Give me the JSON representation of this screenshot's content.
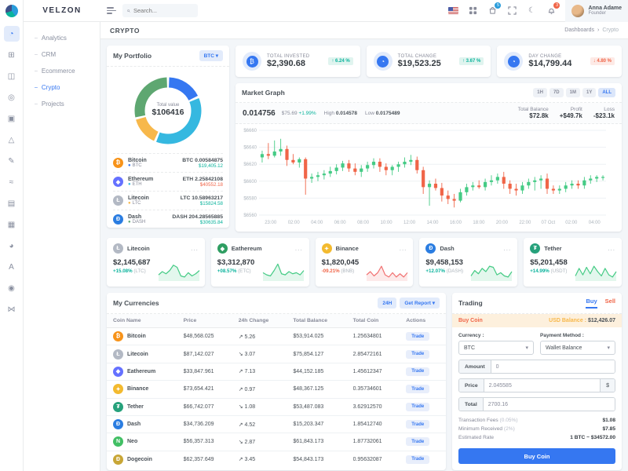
{
  "brand": {
    "name": "VELZON"
  },
  "topbar": {
    "search_placeholder": "Search...",
    "cart_badge": "5",
    "bell_badge": "3",
    "user": {
      "name": "Anna Adame",
      "role": "Founder"
    }
  },
  "rail": {
    "icons": [
      {
        "name": "dashboards",
        "glyph": "◔",
        "active": true
      },
      {
        "name": "apps",
        "glyph": "⊞",
        "active": false
      },
      {
        "name": "layouts",
        "glyph": "◫",
        "active": false
      },
      {
        "name": "pages",
        "glyph": "◎",
        "active": false
      },
      {
        "name": "landing",
        "glyph": "▣",
        "active": false
      },
      {
        "name": "base-ui",
        "glyph": "△",
        "active": false
      },
      {
        "name": "advance-ui",
        "glyph": "✎",
        "active": false
      },
      {
        "name": "widgets",
        "glyph": "≈",
        "active": false
      },
      {
        "name": "forms",
        "glyph": "▤",
        "active": false
      },
      {
        "name": "tables",
        "glyph": "▦",
        "active": false
      },
      {
        "name": "charts",
        "glyph": "◕",
        "active": false
      },
      {
        "name": "icons",
        "glyph": "A",
        "active": false
      },
      {
        "name": "maps",
        "glyph": "◉",
        "active": false
      },
      {
        "name": "multilevel",
        "glyph": "⋈",
        "active": false
      }
    ]
  },
  "sidebar": {
    "items": [
      {
        "label": "Analytics",
        "active": false
      },
      {
        "label": "CRM",
        "active": false
      },
      {
        "label": "Ecommerce",
        "active": false
      },
      {
        "label": "Crypto",
        "active": true
      },
      {
        "label": "Projects",
        "active": false
      }
    ]
  },
  "page": {
    "title": "CRYPTO",
    "breadcrumb_root": "Dashboards",
    "breadcrumb_sep": "›",
    "breadcrumb_current": "Crypto"
  },
  "portfolio": {
    "title": "My Portfolio",
    "select_label": "BTC",
    "select_caret": "▾",
    "center_label": "Total value",
    "center_value": "$106416",
    "coins": [
      {
        "name": "Bitcoin",
        "symbol": "BTC",
        "glyph": "₿",
        "icon_color": "#f7931a",
        "dot_color": "#3577f1",
        "amount": "BTC 0.00584875",
        "value": "$19,405.12",
        "value_dir": "up"
      },
      {
        "name": "Ethereum",
        "symbol": "ETH",
        "glyph": "◆",
        "icon_color": "#6571ff",
        "dot_color": "#35b8e0",
        "amount": "ETH 2.25842108",
        "value": "$40552.18",
        "value_dir": "down"
      },
      {
        "name": "Litecoin",
        "symbol": "LTC",
        "glyph": "Ł",
        "icon_color": "#b3b9c4",
        "dot_color": "#f7b84b",
        "amount": "LTC 10.58963217",
        "value": "$15824.58",
        "value_dir": "up"
      },
      {
        "name": "Dash",
        "symbol": "DASH",
        "glyph": "Đ",
        "icon_color": "#2b7de1",
        "dot_color": "#5ea771",
        "amount": "DASH 204.28565885",
        "value": "$30635.84",
        "value_dir": "up"
      }
    ]
  },
  "stats": [
    {
      "label": "TOTAL INVESTED",
      "value": "$2,390.68",
      "delta": "6.24 %",
      "dir": "up",
      "glyph": "₿"
    },
    {
      "label": "TOTAL CHANGE",
      "value": "$19,523.25",
      "delta": "3.67 %",
      "dir": "up",
      "glyph": "◔"
    },
    {
      "label": "DAY CHANGE",
      "value": "$14,799.44",
      "delta": "4.80 %",
      "dir": "down",
      "glyph": "◔"
    }
  ],
  "market": {
    "title": "Market Graph",
    "ranges": [
      "1H",
      "7D",
      "1M",
      "1Y",
      "ALL"
    ],
    "active_range": "ALL",
    "price": "0.014756",
    "change_usd": "$75.69",
    "change_pct": "+1.99%",
    "high_label": "High",
    "high": "0.014578",
    "low_label": "Low",
    "low": "0.0175489",
    "balance_label": "Total Balance",
    "balance": "$72.8k",
    "profit_label": "Profit",
    "profit": "+$49.7k",
    "loss_label": "Loss",
    "loss": "-$23.1k"
  },
  "coin_cards": [
    {
      "name": "Litecoin",
      "glyph": "Ł",
      "icon_color": "#b3b9c4",
      "value": "$2,145,687",
      "change": "+15.08%",
      "unit": "(LTC)",
      "dir": "up",
      "menu": "..."
    },
    {
      "name": "Eathereum",
      "glyph": "◆",
      "icon_color": "#2f9e62",
      "value": "$3,312,870",
      "change": "+08.57%",
      "unit": "(ETC)",
      "dir": "up",
      "menu": "..."
    },
    {
      "name": "Binance",
      "glyph": "✦",
      "icon_color": "#f3ba2f",
      "value": "$1,820,045",
      "change": "-09.21%",
      "unit": "(BNB)",
      "dir": "down",
      "menu": "..."
    },
    {
      "name": "Dash",
      "glyph": "Đ",
      "icon_color": "#2b7de1",
      "value": "$9,458,153",
      "change": "+12.07%",
      "unit": "(DASH)",
      "dir": "up",
      "menu": "..."
    },
    {
      "name": "Tether",
      "glyph": "₮",
      "icon_color": "#26a17b",
      "value": "$5,201,458",
      "change": "+14.99%",
      "unit": "(USDT)",
      "dir": "up",
      "menu": "..."
    }
  ],
  "currencies": {
    "title": "My Currencies",
    "btn_24h": "24H",
    "btn_report": "Get Report",
    "btn_report_caret": "▾",
    "columns": [
      "Coin Name",
      "Price",
      "24h Change",
      "Total Balance",
      "Total Coin",
      "Actions"
    ],
    "trade_label": "Trade",
    "rows": [
      {
        "coin": "Bitcoin",
        "glyph": "₿",
        "icon_color": "#f7931a",
        "price": "$48,568.025",
        "change": "5.26",
        "dir": "up",
        "balance": "$53,914.025",
        "total_coin": "1.25634801"
      },
      {
        "coin": "Litecoin",
        "glyph": "Ł",
        "icon_color": "#b3b9c4",
        "price": "$87,142.027",
        "change": "3.07",
        "dir": "down",
        "balance": "$75,854.127",
        "total_coin": "2.85472161"
      },
      {
        "coin": "Eathereum",
        "glyph": "◆",
        "icon_color": "#6571ff",
        "price": "$33,847.961",
        "change": "7.13",
        "dir": "up",
        "balance": "$44,152.185",
        "total_coin": "1.45612347"
      },
      {
        "coin": "Binance",
        "glyph": "✦",
        "icon_color": "#f3ba2f",
        "price": "$73,654.421",
        "change": "0.97",
        "dir": "up",
        "balance": "$48,367.125",
        "total_coin": "0.35734601"
      },
      {
        "coin": "Tether",
        "glyph": "₮",
        "icon_color": "#26a17b",
        "price": "$66,742.077",
        "change": "1.08",
        "dir": "down",
        "balance": "$53,487.083",
        "total_coin": "3.62912570"
      },
      {
        "coin": "Dash",
        "glyph": "Đ",
        "icon_color": "#2b7de1",
        "price": "$34,736.209",
        "change": "4.52",
        "dir": "up",
        "balance": "$15,203.347",
        "total_coin": "1.85412740"
      },
      {
        "coin": "Neo",
        "glyph": "N",
        "icon_color": "#41bf64",
        "price": "$56,357.313",
        "change": "2.87",
        "dir": "down",
        "balance": "$61,843.173",
        "total_coin": "1.87732061"
      },
      {
        "coin": "Dogecoin",
        "glyph": "Ð",
        "icon_color": "#c8a636",
        "price": "$62,357.649",
        "change": "3.45",
        "dir": "up",
        "balance": "$54,843.173",
        "total_coin": "0.95632087"
      }
    ]
  },
  "trading": {
    "title": "Trading",
    "tab_buy": "Buy",
    "tab_sell": "Sell",
    "banner_left": "Buy Coin",
    "banner_right_label": "USD Balance :",
    "banner_right_value": "$12,426.07",
    "currency_label": "Currency :",
    "currency_value": "BTC",
    "payment_label": "Payment Method :",
    "payment_value": "Wallet Balance",
    "amount_label": "Amount",
    "amount_value": "0",
    "price_label": "Price",
    "price_value": "2.045585",
    "price_suffix": "$",
    "total_label": "Total",
    "total_value": "2700.16",
    "fees": [
      {
        "label": "Transaction Fees",
        "sub": "(0.05%)",
        "value": "$1.08"
      },
      {
        "label": "Minimum Received",
        "sub": "(2%)",
        "value": "$7.85"
      },
      {
        "label": "Estimated Rate",
        "sub": "",
        "value": "1 BTC ~ $34572.00"
      }
    ],
    "submit_label": "Buy Coin"
  },
  "chart_data": [
    {
      "type": "pie",
      "title": "My Portfolio donut",
      "categories": [
        "Bitcoin",
        "Ethereum",
        "Litecoin",
        "Dash"
      ],
      "values": [
        19405.12,
        40552.18,
        15824.58,
        30635.84
      ],
      "colors": [
        "#3577f1",
        "#35b8e0",
        "#f7b84b",
        "#5ea771"
      ],
      "center_label": "Total value",
      "center_value": "$106416"
    },
    {
      "type": "candlestick",
      "title": "Market Graph BTC/USD",
      "ylim": [
        6560,
        6660
      ],
      "yticks": [
        "$6560",
        "$6580",
        "$6600",
        "$6620",
        "$6640",
        "$6660"
      ],
      "xticklabels": [
        "23:00",
        "02:00",
        "04:00",
        "06:00",
        "08:00",
        "10:00",
        "12:00",
        "14:00",
        "16:00",
        "18:00",
        "20:00",
        "22:00",
        "07 Oct",
        "02:00",
        "04:00"
      ],
      "up_color": "#45cb85",
      "down_color": "#f06548",
      "ohlc": [
        [
          6628,
          6636,
          6622,
          6632
        ],
        [
          6632,
          6645,
          6626,
          6630
        ],
        [
          6630,
          6648,
          6628,
          6635
        ],
        [
          6635,
          6650,
          6630,
          6638
        ],
        [
          6638,
          6642,
          6618,
          6625
        ],
        [
          6625,
          6632,
          6620,
          6622
        ],
        [
          6622,
          6628,
          6616,
          6626
        ],
        [
          6626,
          6628,
          6584,
          6603
        ],
        [
          6603,
          6609,
          6598,
          6605
        ],
        [
          6605,
          6611,
          6600,
          6607
        ],
        [
          6607,
          6613,
          6602,
          6609
        ],
        [
          6609,
          6617,
          6605,
          6612
        ],
        [
          6612,
          6620,
          6608,
          6616
        ],
        [
          6616,
          6624,
          6612,
          6621
        ],
        [
          6621,
          6625,
          6611,
          6615
        ],
        [
          6615,
          6621,
          6607,
          6611
        ],
        [
          6611,
          6619,
          6605,
          6615
        ],
        [
          6615,
          6623,
          6611,
          6619
        ],
        [
          6619,
          6627,
          6615,
          6623
        ],
        [
          6623,
          6627,
          6611,
          6617
        ],
        [
          6617,
          6621,
          6607,
          6613
        ],
        [
          6613,
          6619,
          6607,
          6617
        ],
        [
          6617,
          6623,
          6611,
          6620
        ],
        [
          6620,
          6628,
          6616,
          6623
        ],
        [
          6623,
          6631,
          6619,
          6625
        ],
        [
          6625,
          6629,
          6609,
          6613
        ],
        [
          6613,
          6617,
          6585,
          6593
        ],
        [
          6593,
          6601,
          6571,
          6597
        ],
        [
          6597,
          6603,
          6589,
          6592
        ],
        [
          6592,
          6598,
          6576,
          6583
        ],
        [
          6583,
          6589,
          6573,
          6579
        ],
        [
          6579,
          6585,
          6569,
          6577
        ],
        [
          6577,
          6591,
          6575,
          6587
        ],
        [
          6587,
          6597,
          6583,
          6593
        ],
        [
          6593,
          6599,
          6589,
          6595
        ],
        [
          6595,
          6601,
          6591,
          6593
        ],
        [
          6593,
          6603,
          6589,
          6599
        ],
        [
          6599,
          6607,
          6595,
          6601
        ],
        [
          6601,
          6609,
          6597,
          6605
        ],
        [
          6605,
          6611,
          6591,
          6597
        ],
        [
          6597,
          6601,
          6585,
          6591
        ],
        [
          6591,
          6597,
          6583,
          6589
        ],
        [
          6589,
          6599,
          6585,
          6595
        ],
        [
          6595,
          6603,
          6591,
          6599
        ],
        [
          6599,
          6605,
          6589,
          6601
        ],
        [
          6601,
          6607,
          6591,
          6603
        ],
        [
          6603,
          6609,
          6585,
          6591
        ],
        [
          6591,
          6595,
          6585,
          6589
        ],
        [
          6589,
          6595,
          6585,
          6591
        ],
        [
          6591,
          6599,
          6587,
          6595
        ],
        [
          6595,
          6601,
          6591,
          6597
        ],
        [
          6597,
          6601,
          6591,
          6595
        ],
        [
          6595,
          6605,
          6591,
          6601
        ],
        [
          6601,
          6607,
          6597,
          6603
        ],
        [
          6603,
          6607,
          6599,
          6605
        ],
        [
          6605,
          6607,
          6601,
          6605
        ]
      ]
    },
    {
      "type": "line",
      "title": "Coin card sparklines",
      "series": [
        {
          "name": "Litecoin",
          "color": "#45cb85",
          "values": [
            5,
            8,
            6,
            9,
            14,
            12,
            4,
            3,
            7,
            4,
            6,
            9
          ]
        },
        {
          "name": "Eathereum",
          "color": "#45cb85",
          "values": [
            7,
            5,
            4,
            9,
            15,
            6,
            5,
            8,
            6,
            7,
            5,
            9
          ]
        },
        {
          "name": "Binance",
          "color": "#f17171",
          "values": [
            5,
            8,
            4,
            7,
            13,
            5,
            3,
            7,
            3,
            6,
            3,
            7
          ]
        },
        {
          "name": "Dash",
          "color": "#45cb85",
          "values": [
            4,
            9,
            6,
            11,
            8,
            13,
            12,
            5,
            7,
            4,
            3,
            8
          ]
        },
        {
          "name": "Tether",
          "color": "#45cb85",
          "values": [
            4,
            11,
            5,
            12,
            6,
            13,
            8,
            4,
            11,
            5,
            3,
            8
          ]
        }
      ]
    }
  ]
}
